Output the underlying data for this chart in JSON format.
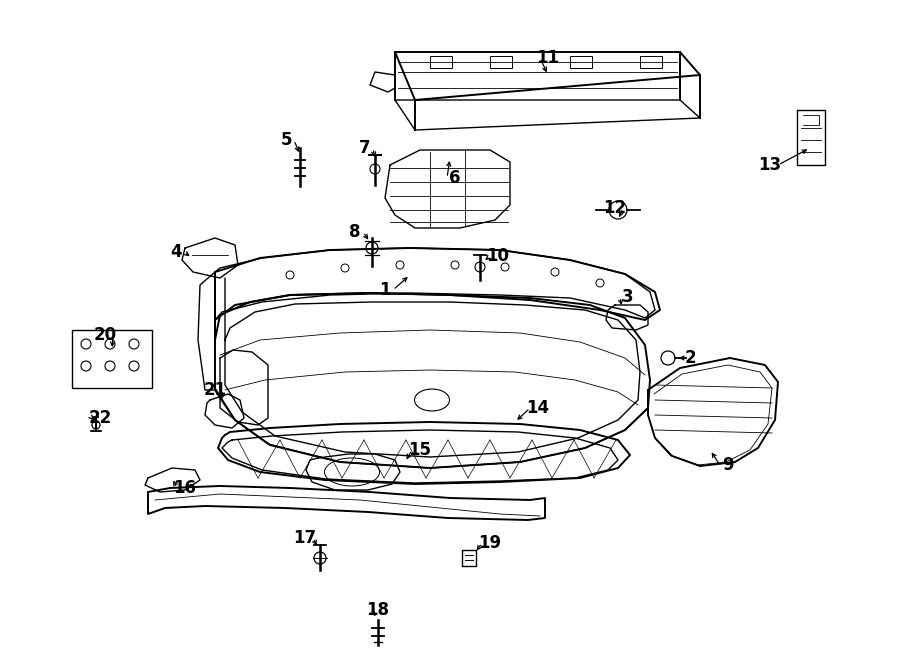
{
  "bg_color": "#ffffff",
  "line_color": "#000000",
  "lw_main": 1.0,
  "lw_thin": 0.6,
  "lw_thick": 1.4
}
